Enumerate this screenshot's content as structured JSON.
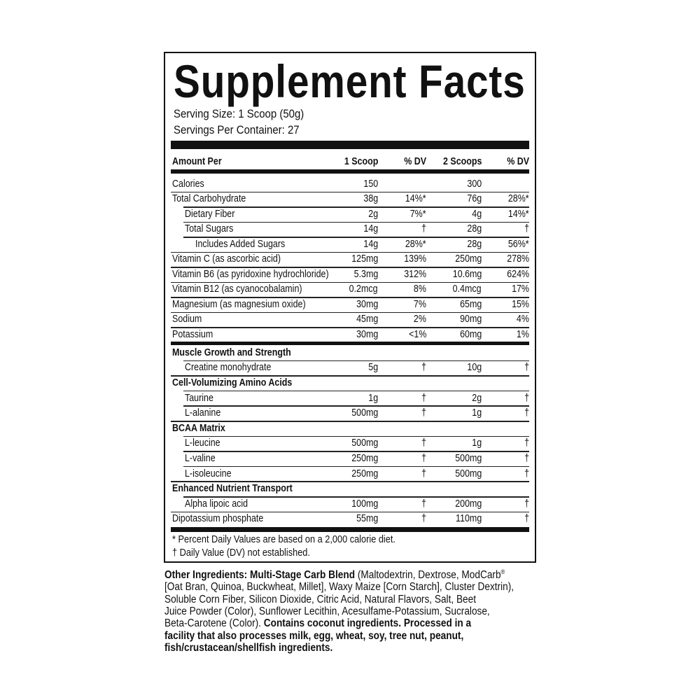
{
  "title": "Supplement Facts",
  "serving_size": "Serving Size: 1 Scoop (50g)",
  "servings_per_container": "Servings Per Container: 27",
  "columns": [
    "Amount Per",
    "1 Scoop",
    "% DV",
    "2 Scoops",
    "% DV"
  ],
  "top_rows": [
    {
      "name": "Calories",
      "a": "150",
      "adv": "",
      "b": "300",
      "bdv": "",
      "indent": 0
    },
    {
      "name": "Total Carbohydrate",
      "a": "38g",
      "adv": "14%*",
      "b": "76g",
      "bdv": "28%*",
      "indent": 0
    },
    {
      "name": "Dietary Fiber",
      "a": "2g",
      "adv": "7%*",
      "b": "4g",
      "bdv": "14%*",
      "indent": 1
    },
    {
      "name": "Total Sugars",
      "a": "14g",
      "adv": "†",
      "b": "28g",
      "bdv": "†",
      "indent": 1
    },
    {
      "name": "Includes Added Sugars",
      "a": "14g",
      "adv": "28%*",
      "b": "28g",
      "bdv": "56%*",
      "indent": 2
    },
    {
      "name": "Vitamin C (as ascorbic acid)",
      "a": "125mg",
      "adv": "139%",
      "b": "250mg",
      "bdv": "278%",
      "indent": 0
    },
    {
      "name": "Vitamin B6 (as pyridoxine hydrochloride)",
      "a": "5.3mg",
      "adv": "312%",
      "b": "10.6mg",
      "bdv": "624%",
      "indent": 0
    },
    {
      "name": "Vitamin B12 (as cyanocobalamin)",
      "a": "0.2mcg",
      "adv": "8%",
      "b": "0.4mcg",
      "bdv": "17%",
      "indent": 0
    },
    {
      "name": "Magnesium (as magnesium oxide)",
      "a": "30mg",
      "adv": "7%",
      "b": "65mg",
      "bdv": "15%",
      "indent": 0
    },
    {
      "name": "Sodium",
      "a": "45mg",
      "adv": "2%",
      "b": "90mg",
      "bdv": "4%",
      "indent": 0
    },
    {
      "name": "Potassium",
      "a": "30mg",
      "adv": "<1%",
      "b": "60mg",
      "bdv": "1%",
      "indent": 0
    }
  ],
  "bottom_rows": [
    {
      "name": "Muscle Growth and Strength",
      "section": true,
      "indent": 0
    },
    {
      "name": "Creatine monohydrate",
      "a": "5g",
      "adv": "†",
      "b": "10g",
      "bdv": "†",
      "indent": 1
    },
    {
      "name": "Cell-Volumizing Amino Acids",
      "section": true,
      "indent": 0
    },
    {
      "name": "Taurine",
      "a": "1g",
      "adv": "†",
      "b": "2g",
      "bdv": "†",
      "indent": 1
    },
    {
      "name": "L-alanine",
      "a": "500mg",
      "adv": "†",
      "b": "1g",
      "bdv": "†",
      "indent": 1
    },
    {
      "name": "BCAA Matrix",
      "section": true,
      "indent": 0
    },
    {
      "name": "L-leucine",
      "a": "500mg",
      "adv": "†",
      "b": "1g",
      "bdv": "†",
      "indent": 1
    },
    {
      "name": "L-valine",
      "a": "250mg",
      "adv": "†",
      "b": "500mg",
      "bdv": "†",
      "indent": 1
    },
    {
      "name": "L-isoleucine",
      "a": "250mg",
      "adv": "†",
      "b": "500mg",
      "bdv": "†",
      "indent": 1
    },
    {
      "name": "Enhanced Nutrient Transport",
      "section": true,
      "indent": 0
    },
    {
      "name": "Alpha lipoic acid",
      "a": "100mg",
      "adv": "†",
      "b": "200mg",
      "bdv": "†",
      "indent": 1
    },
    {
      "name": "Dipotassium phosphate",
      "a": "55mg",
      "adv": "†",
      "b": "110mg",
      "bdv": "†",
      "indent": 0
    }
  ],
  "footnotes": [
    "* Percent Daily Values are based on a 2,000 calorie diet.",
    "† Daily Value (DV) not established."
  ],
  "other_ingredients": [
    [
      {
        "t": "Other Ingredients: Multi-Stage Carb Blend",
        "b": true
      },
      {
        "t": " (Maltodextrin, Dextrose, ModCarb",
        "b": false
      },
      {
        "t": "®",
        "sup": true
      }
    ],
    [
      {
        "t": "[Oat Bran, Quinoa, Buckwheat, Millet], Waxy Maize [Corn Starch], Cluster Dextrin),",
        "b": false
      }
    ],
    [
      {
        "t": "Soluble Corn Fiber, Silicon Dioxide, Citric Acid, Natural Flavors, Salt, Beet",
        "b": false
      }
    ],
    [
      {
        "t": "Juice Powder (Color), Sunflower Lecithin, Acesulfame-Potassium, Sucralose,",
        "b": false
      }
    ],
    [
      {
        "t": "Beta-Carotene (Color). ",
        "b": false
      },
      {
        "t": "Contains coconut ingredients. Processed in a",
        "b": true
      }
    ],
    [
      {
        "t": "facility that also processes milk, egg, wheat, soy, tree nut, peanut,",
        "b": true
      }
    ],
    [
      {
        "t": "fish/crustacean/shellfish ingredients.",
        "b": true
      }
    ]
  ]
}
